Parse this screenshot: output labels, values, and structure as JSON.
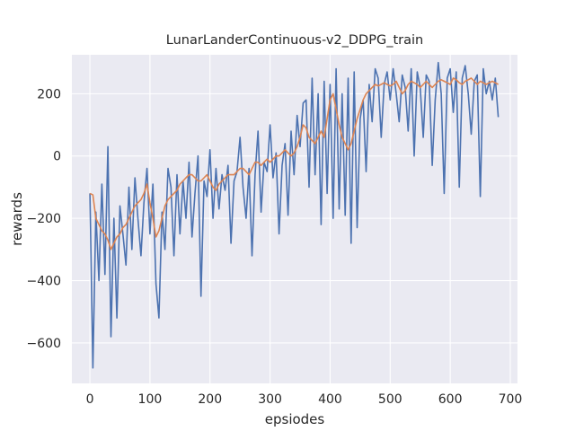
{
  "chart_data": {
    "type": "line",
    "title": "LunarLanderContinuous-v2_DDPG_train",
    "xlabel": "epsiodes",
    "ylabel": "rewards",
    "xlim": [
      -30,
      712
    ],
    "ylim": [
      -730,
      325
    ],
    "x_ticks": [
      0,
      100,
      200,
      300,
      400,
      500,
      600,
      700
    ],
    "x_tick_labels": [
      "0",
      "100",
      "200",
      "300",
      "400",
      "500",
      "600",
      "700"
    ],
    "y_ticks": [
      -600,
      -400,
      -200,
      0,
      200
    ],
    "y_tick_labels": [
      "−600",
      "−400",
      "−200",
      "0",
      "200"
    ],
    "grid": true,
    "background": "#eaeaf2",
    "series": [
      {
        "color": "#4c72b0",
        "x": [
          0,
          5,
          10,
          15,
          20,
          25,
          30,
          35,
          40,
          45,
          50,
          55,
          60,
          65,
          70,
          75,
          80,
          85,
          90,
          95,
          100,
          105,
          110,
          115,
          120,
          125,
          130,
          135,
          140,
          145,
          150,
          155,
          160,
          165,
          170,
          175,
          180,
          185,
          190,
          195,
          200,
          205,
          210,
          215,
          220,
          225,
          230,
          235,
          240,
          245,
          250,
          255,
          260,
          265,
          270,
          275,
          280,
          285,
          290,
          295,
          300,
          305,
          310,
          315,
          320,
          325,
          330,
          335,
          340,
          345,
          350,
          355,
          360,
          365,
          370,
          375,
          380,
          385,
          390,
          395,
          400,
          405,
          410,
          415,
          420,
          425,
          430,
          435,
          440,
          445,
          450,
          455,
          460,
          465,
          470,
          475,
          480,
          485,
          490,
          495,
          500,
          505,
          510,
          515,
          520,
          525,
          530,
          535,
          540,
          545,
          550,
          555,
          560,
          565,
          570,
          575,
          580,
          585,
          590,
          595,
          600,
          605,
          610,
          615,
          620,
          625,
          630,
          635,
          640,
          645,
          650,
          655,
          660,
          665,
          670,
          675,
          680
        ],
        "values": [
          -120,
          -680,
          -180,
          -400,
          -90,
          -380,
          30,
          -580,
          -200,
          -520,
          -160,
          -250,
          -350,
          -100,
          -300,
          -70,
          -200,
          -320,
          -150,
          -40,
          -250,
          -90,
          -410,
          -520,
          -180,
          -300,
          -40,
          -100,
          -320,
          -60,
          -250,
          -80,
          -200,
          -20,
          -260,
          -120,
          0,
          -450,
          -80,
          -130,
          20,
          -200,
          -40,
          -170,
          -60,
          -110,
          -30,
          -280,
          -80,
          -50,
          60,
          -100,
          -200,
          -40,
          -320,
          -60,
          80,
          -180,
          -20,
          -50,
          100,
          -70,
          10,
          -250,
          -30,
          40,
          -190,
          80,
          -60,
          130,
          30,
          170,
          180,
          -100,
          250,
          -60,
          200,
          -220,
          240,
          -120,
          230,
          -200,
          280,
          -170,
          200,
          -190,
          250,
          -280,
          270,
          -230,
          120,
          180,
          -50,
          230,
          110,
          280,
          250,
          60,
          230,
          270,
          180,
          280,
          200,
          110,
          260,
          220,
          80,
          280,
          0,
          270,
          220,
          60,
          260,
          240,
          -30,
          180,
          300,
          200,
          -120,
          250,
          280,
          140,
          270,
          -100,
          250,
          290,
          200,
          70,
          240,
          260,
          -130,
          280,
          200,
          240,
          180,
          250,
          125
        ]
      },
      {
        "color": "#dd8452",
        "x": [
          0,
          5,
          10,
          15,
          20,
          25,
          30,
          35,
          40,
          45,
          50,
          55,
          60,
          65,
          70,
          75,
          80,
          85,
          90,
          95,
          100,
          105,
          110,
          115,
          120,
          125,
          130,
          135,
          140,
          145,
          150,
          155,
          160,
          165,
          170,
          175,
          180,
          185,
          190,
          195,
          200,
          205,
          210,
          215,
          220,
          225,
          230,
          235,
          240,
          245,
          250,
          255,
          260,
          265,
          270,
          275,
          280,
          285,
          290,
          295,
          300,
          305,
          310,
          315,
          320,
          325,
          330,
          335,
          340,
          345,
          350,
          355,
          360,
          365,
          370,
          375,
          380,
          385,
          390,
          395,
          400,
          405,
          410,
          415,
          420,
          425,
          430,
          435,
          440,
          445,
          450,
          455,
          460,
          465,
          470,
          475,
          480,
          485,
          490,
          495,
          500,
          505,
          510,
          515,
          520,
          525,
          530,
          535,
          540,
          545,
          550,
          555,
          560,
          565,
          570,
          575,
          580,
          585,
          590,
          595,
          600,
          605,
          610,
          615,
          620,
          625,
          630,
          635,
          640,
          645,
          650,
          655,
          660,
          665,
          670,
          675,
          680
        ],
        "values": [
          -120,
          -125,
          -200,
          -220,
          -240,
          -250,
          -270,
          -300,
          -280,
          -260,
          -250,
          -230,
          -220,
          -200,
          -180,
          -160,
          -150,
          -140,
          -120,
          -90,
          -150,
          -200,
          -260,
          -240,
          -200,
          -160,
          -140,
          -130,
          -120,
          -110,
          -90,
          -80,
          -70,
          -60,
          -60,
          -70,
          -80,
          -80,
          -70,
          -60,
          -80,
          -100,
          -110,
          -90,
          -80,
          -70,
          -60,
          -60,
          -60,
          -50,
          -40,
          -40,
          -50,
          -60,
          -40,
          -20,
          -20,
          -30,
          -20,
          -10,
          -20,
          -10,
          0,
          0,
          10,
          20,
          10,
          0,
          10,
          30,
          60,
          100,
          90,
          60,
          50,
          40,
          60,
          80,
          60,
          120,
          180,
          200,
          150,
          100,
          60,
          40,
          20,
          40,
          80,
          120,
          150,
          180,
          200,
          210,
          220,
          230,
          225,
          230,
          235,
          230,
          225,
          230,
          240,
          220,
          200,
          210,
          230,
          240,
          235,
          230,
          220,
          230,
          240,
          230,
          220,
          230,
          240,
          245,
          240,
          235,
          230,
          250,
          245,
          235,
          230,
          240,
          245,
          250,
          240,
          230,
          240,
          235,
          230,
          235,
          240,
          235,
          230
        ]
      }
    ]
  }
}
